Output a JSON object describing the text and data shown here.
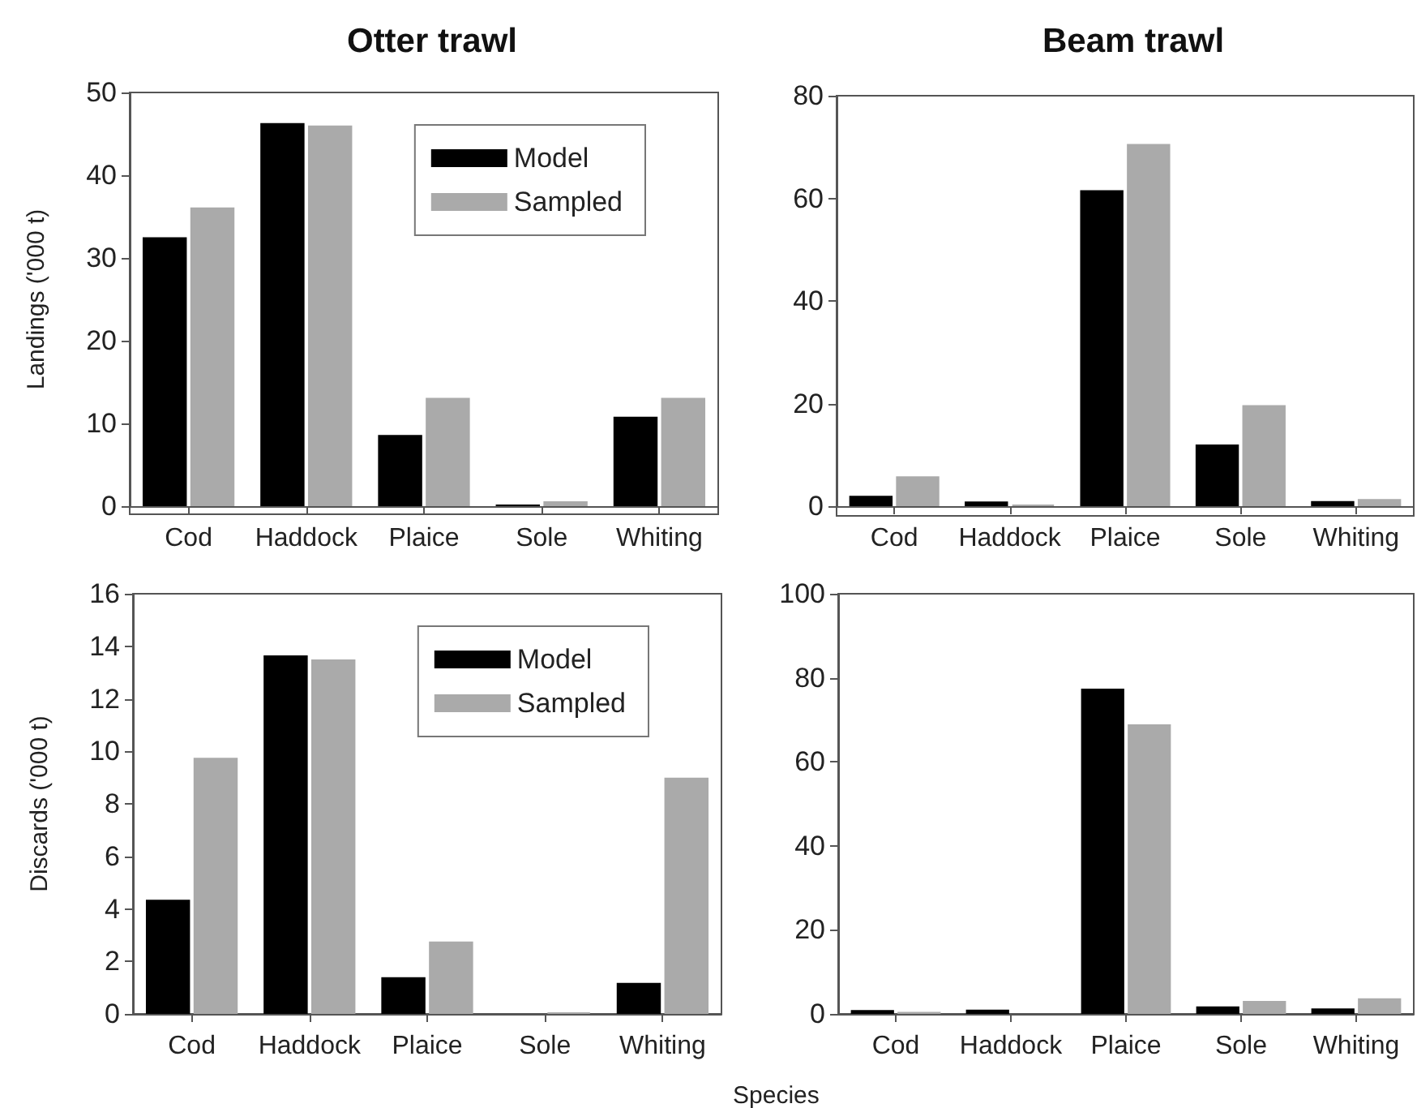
{
  "chart_data": [
    {
      "type": "bar",
      "title": "Otter trawl",
      "ylabel": "Landings ('000 t)",
      "categories": [
        "Cod",
        "Haddock",
        "Plaice",
        "Sole",
        "Whiting"
      ],
      "series": [
        {
          "name": "Model",
          "color": "#000000",
          "values": [
            32.5,
            46.3,
            8.6,
            0.2,
            10.8
          ]
        },
        {
          "name": "Sampled",
          "color": "#aaaaaa",
          "values": [
            36.1,
            46.0,
            13.1,
            0.6,
            13.1
          ]
        }
      ],
      "ylim": [
        0,
        50
      ],
      "yticks": [
        0,
        10,
        20,
        30,
        40,
        50
      ],
      "grid": false,
      "legend": "top right"
    },
    {
      "type": "bar",
      "title": "Beam trawl",
      "categories": [
        "Cod",
        "Haddock",
        "Plaice",
        "Sole",
        "Whiting"
      ],
      "series": [
        {
          "color": "#000000",
          "values": [
            2.0,
            0.9,
            61.6,
            12.0,
            1.0
          ]
        },
        {
          "color": "#aaaaaa",
          "values": [
            5.8,
            0.3,
            70.6,
            19.7,
            1.4
          ]
        }
      ],
      "ylim": [
        0,
        80
      ],
      "yticks": [
        0,
        20,
        40,
        60,
        80
      ],
      "grid": false,
      "legend": false
    },
    {
      "type": "bar",
      "ylabel": "Discards ('000 t)",
      "categories": [
        "Cod",
        "Haddock",
        "Plaice",
        "Sole",
        "Whiting"
      ],
      "series": [
        {
          "name": "Model",
          "color": "#000000",
          "values": [
            4.35,
            13.65,
            1.4,
            0,
            1.18
          ]
        },
        {
          "name": "Sampled",
          "color": "#aaaaaa",
          "values": [
            9.75,
            13.5,
            2.76,
            0.06,
            9.0
          ]
        }
      ],
      "ylim": [
        0,
        16
      ],
      "yticks": [
        0,
        2,
        4,
        6,
        8,
        10,
        12,
        14,
        16
      ],
      "grid": false,
      "legend": "top right"
    },
    {
      "type": "bar",
      "xlabel": "Species",
      "categories": [
        "Cod",
        "Haddock",
        "Plaice",
        "Sole",
        "Whiting"
      ],
      "series": [
        {
          "color": "#000000",
          "values": [
            0.9,
            1.0,
            77.4,
            1.8,
            1.3
          ]
        },
        {
          "color": "#aaaaaa",
          "values": [
            0.5,
            0,
            68.9,
            3.1,
            3.7
          ]
        }
      ],
      "ylim": [
        0,
        100
      ],
      "yticks": [
        0,
        20,
        40,
        60,
        80,
        100
      ],
      "grid": false,
      "legend": false
    }
  ]
}
